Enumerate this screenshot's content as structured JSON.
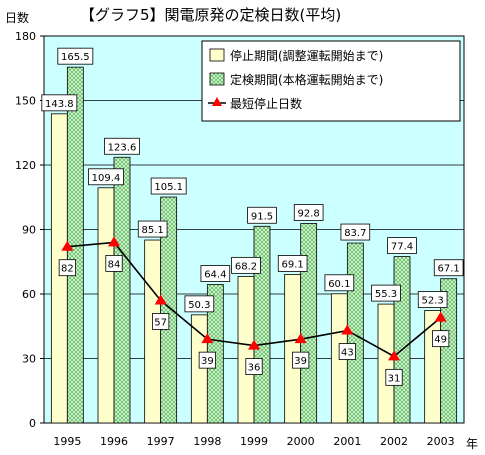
{
  "chart_data": {
    "type": "bar",
    "title": "【グラフ5】関電原発の定検日数(平均)",
    "ylabel": "日数",
    "xlabel": "年",
    "ylim": [
      0,
      180
    ],
    "yticks": [
      "0",
      "30",
      "60",
      "90",
      "120",
      "150",
      "180"
    ],
    "categories": [
      "1995",
      "1996",
      "1997",
      "1998",
      "1999",
      "2000",
      "2001",
      "2002",
      "2003"
    ],
    "series": [
      {
        "name": "停止期間(調整運転開始まで)",
        "kind": "bar",
        "color": "#ffffcc",
        "values": [
          143.8,
          109.4,
          85.1,
          50.3,
          68.2,
          69.1,
          60.1,
          55.3,
          52.3
        ],
        "labels": [
          "143.8",
          "109.4",
          "85.1",
          "50.3",
          "68.2",
          "69.1",
          "60.1",
          "55.3",
          "52.3"
        ]
      },
      {
        "name": "定検期間(本格運転開始まで)",
        "kind": "bar",
        "color": "#ccffcc",
        "values": [
          165.5,
          123.6,
          105.1,
          64.4,
          91.5,
          92.8,
          83.7,
          77.4,
          67.1
        ],
        "labels": [
          "165.5",
          "123.6",
          "105.1",
          "64.4",
          "91.5",
          "92.8",
          "83.7",
          "77.4",
          "67.1"
        ]
      },
      {
        "name": "最短停止日数",
        "kind": "line",
        "color": "#ff0000",
        "values": [
          82,
          84,
          57,
          39,
          36,
          39,
          43,
          31,
          49
        ],
        "labels": [
          "82",
          "84",
          "57",
          "39",
          "36",
          "39",
          "43",
          "31",
          "49"
        ]
      }
    ],
    "plot_background": "#ccffff",
    "grid": true,
    "legend_position": "top-right"
  }
}
